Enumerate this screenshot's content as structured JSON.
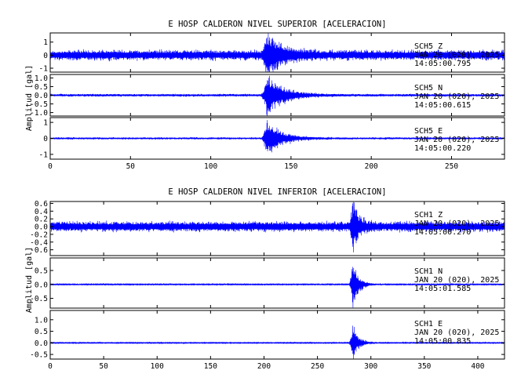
{
  "colors": {
    "trace": "#0000ff",
    "axis": "#000000",
    "background": "#ffffff"
  },
  "chart_data": [
    {
      "type": "line",
      "title": "E HOSP CALDERON NIVEL SUPERIOR [ACELERACION]",
      "ylabel": "Amplitud [gal]",
      "xlim": [
        0,
        283
      ],
      "xticks": [
        "0",
        "50",
        "100",
        "150",
        "200",
        "250"
      ],
      "grid": false,
      "panels": [
        {
          "channel": "SCH5   Z",
          "date": "JAN 20 (020), 2025",
          "time": "14:05:00.795",
          "ylim": [
            -1.3,
            1.7
          ],
          "yticks": [
            "-1",
            "0",
            "1"
          ],
          "noise_amplitude": 0.35,
          "event_peak_time": 135,
          "event_peak_amplitude": 1.5,
          "event_duration": 30
        },
        {
          "channel": "SCH5   N",
          "date": "JAN 20 (020), 2025",
          "time": "14:05:00.615",
          "ylim": [
            -1.2,
            1.2
          ],
          "yticks": [
            "-1.0",
            "-0.5",
            "0.0",
            "0.5",
            "1.0"
          ],
          "noise_amplitude": 0.07,
          "event_peak_time": 135,
          "event_peak_amplitude": 1.1,
          "event_duration": 35
        },
        {
          "channel": "SCH5   E",
          "date": "JAN 20 (020), 2025",
          "time": "14:05:00.220",
          "ylim": [
            -1.3,
            1.3
          ],
          "yticks": [
            "-1",
            "0",
            "1"
          ],
          "noise_amplitude": 0.06,
          "event_peak_time": 135,
          "event_peak_amplitude": 1.1,
          "event_duration": 30
        }
      ]
    },
    {
      "type": "line",
      "title": "E HOSP CALDERON NIVEL INFERIOR [ACELERACION]",
      "ylabel": "Amplitud [gal]",
      "xlim": [
        0,
        425
      ],
      "xticks": [
        "0",
        "50",
        "100",
        "150",
        "200",
        "250",
        "300",
        "350",
        "400"
      ],
      "grid": false,
      "panels": [
        {
          "channel": "SCH1   Z",
          "date": "JAN 20 (020), 2025",
          "time": "14:05:00.270",
          "ylim": [
            -0.75,
            0.65
          ],
          "yticks": [
            "-0.6",
            "-0.4",
            "-0.2",
            "0.0",
            "0.2",
            "0.4",
            "0.6"
          ],
          "noise_amplitude": 0.12,
          "event_peak_time": 283,
          "event_peak_amplitude": 0.6,
          "event_duration": 18
        },
        {
          "channel": "SCH1   N",
          "date": "JAN 20 (020), 2025",
          "time": "14:05:01.585",
          "ylim": [
            -0.85,
            0.95
          ],
          "yticks": [
            "-0.5",
            "0.0",
            "0.5"
          ],
          "noise_amplitude": 0.02,
          "event_peak_time": 283,
          "event_peak_amplitude": 0.72,
          "event_duration": 20
        },
        {
          "channel": "SCH1   E",
          "date": "JAN 20 (020), 2025",
          "time": "14:05:00.835",
          "ylim": [
            -0.7,
            1.4
          ],
          "yticks": [
            "-0.5",
            "0.0",
            "0.5",
            "1.0"
          ],
          "noise_amplitude": 0.02,
          "event_peak_time": 283,
          "event_peak_amplitude": 0.65,
          "event_duration": 20
        }
      ]
    }
  ]
}
